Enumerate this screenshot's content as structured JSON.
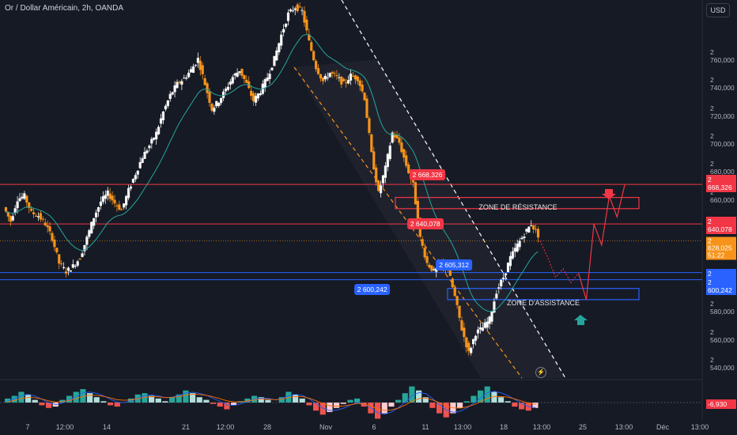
{
  "header": {
    "title": "Or / Dollar Américain, 2h, OANDA",
    "currency": "USD"
  },
  "colors": {
    "background": "#161a25",
    "up": "#f7f7f7",
    "down": "#f7931a",
    "resistance": "#f23645",
    "support": "#2962ff",
    "ema": "#26a69a"
  },
  "chart_data": {
    "type": "candlestick",
    "symbol": "XAUUSD",
    "timeframe": "2h",
    "ylim": [
      2530,
      2800
    ],
    "y_ticks": [
      "2 760,000",
      "2 740,000",
      "2 720,000",
      "2 700,000",
      "2 680,000",
      "2 660,000",
      "2 620,000",
      "2 580,000",
      "2 560,000",
      "2 540,000"
    ],
    "y_tick_values": [
      2760,
      2740,
      2720,
      2700,
      2680,
      2660,
      2620,
      2580,
      2560,
      2540
    ],
    "x_ticks": [
      "7",
      "12:00",
      "14",
      "21",
      "12:00",
      "28",
      "Nov",
      "6",
      "11",
      "13:00",
      "18",
      "13:00",
      "25",
      "13:00",
      "Déc",
      "13:00"
    ],
    "price_path": [
      [
        2652,
        2642,
        2658,
        2660,
        2648,
        2646,
        2640,
        2630,
        2612,
        2606,
        2610,
        2616,
        2630,
        2645,
        2656,
        2662,
        2655,
        2650,
        2664,
        2676,
        2688,
        2696,
        2705,
        2720,
        2732,
        2740,
        2744,
        2750,
        2758,
        2740,
        2722,
        2728,
        2736,
        2745,
        2750,
        2740,
        2728,
        2735,
        2745,
        2758,
        2775,
        2790,
        2795,
        2792,
        2770,
        2752,
        2742,
        2748,
        2745,
        2740,
        2746,
        2744,
        2730,
        2690,
        2662,
        2680,
        2705,
        2698,
        2682,
        2668,
        2630,
        2612,
        2606,
        2611,
        2608,
        2588,
        2565,
        2548,
        2562,
        2566,
        2572,
        2592,
        2602,
        2616,
        2625,
        2633,
        2640,
        2632
      ]
    ],
    "levels": {
      "resistance_upper": 2668.326,
      "resistance_lower": 2640.078,
      "support_upper": 2605.312,
      "support_lower": 2600.242,
      "last_price": 2628.025
    },
    "zones": {
      "resistance": {
        "label": "ZONE DE RÉSISTANCE",
        "from": 2651,
        "to": 2659
      },
      "support": {
        "label": "ZONE D'ASSISTANCE",
        "from": 2586,
        "to": 2594
      }
    },
    "projection": [
      2628,
      2616,
      2602,
      2608,
      2598,
      2605,
      2586,
      2640,
      2625,
      2660,
      2645,
      2668
    ],
    "indicator": {
      "name": "MACD",
      "last_value": "-6,930",
      "histogram": [
        3,
        5,
        8,
        6,
        2,
        -2,
        -4,
        -3,
        2,
        5,
        8,
        10,
        7,
        4,
        1,
        -2,
        -3,
        0,
        3,
        6,
        7,
        5,
        3,
        1,
        4,
        6,
        9,
        7,
        4,
        2,
        -1,
        -3,
        -5,
        -2,
        1,
        3,
        5,
        4,
        2,
        0,
        4,
        8,
        6,
        3,
        -2,
        -6,
        -9,
        -7,
        -4,
        -1,
        2,
        3,
        -3,
        -8,
        -12,
        -8,
        -3,
        2,
        7,
        12,
        9,
        4,
        -4,
        -8,
        -11,
        -8,
        -4,
        1,
        5,
        9,
        12,
        8,
        4,
        1,
        -3,
        -5,
        -6,
        -4
      ]
    },
    "callouts": [
      {
        "text": "2 668,326",
        "price": 2675,
        "x_frac": 0.58,
        "color": "#f23645"
      },
      {
        "text": "2 640,078",
        "price": 2640,
        "x_frac": 0.577,
        "color": "#f23645"
      },
      {
        "text": "2 605,312",
        "price": 2611,
        "x_frac": 0.616,
        "color": "#2962ff"
      },
      {
        "text": "2 600,242",
        "price": 2593,
        "x_frac": 0.505,
        "color": "#2962ff"
      }
    ]
  },
  "price_labels": {
    "resistance_upper": "2 668,326",
    "resistance_lower": "2 640,078",
    "last_price": "2 628,025",
    "countdown": "51:22",
    "support_upper": "2 605,312",
    "support_lower": "2 600,242",
    "macd_value": "-6,930"
  }
}
